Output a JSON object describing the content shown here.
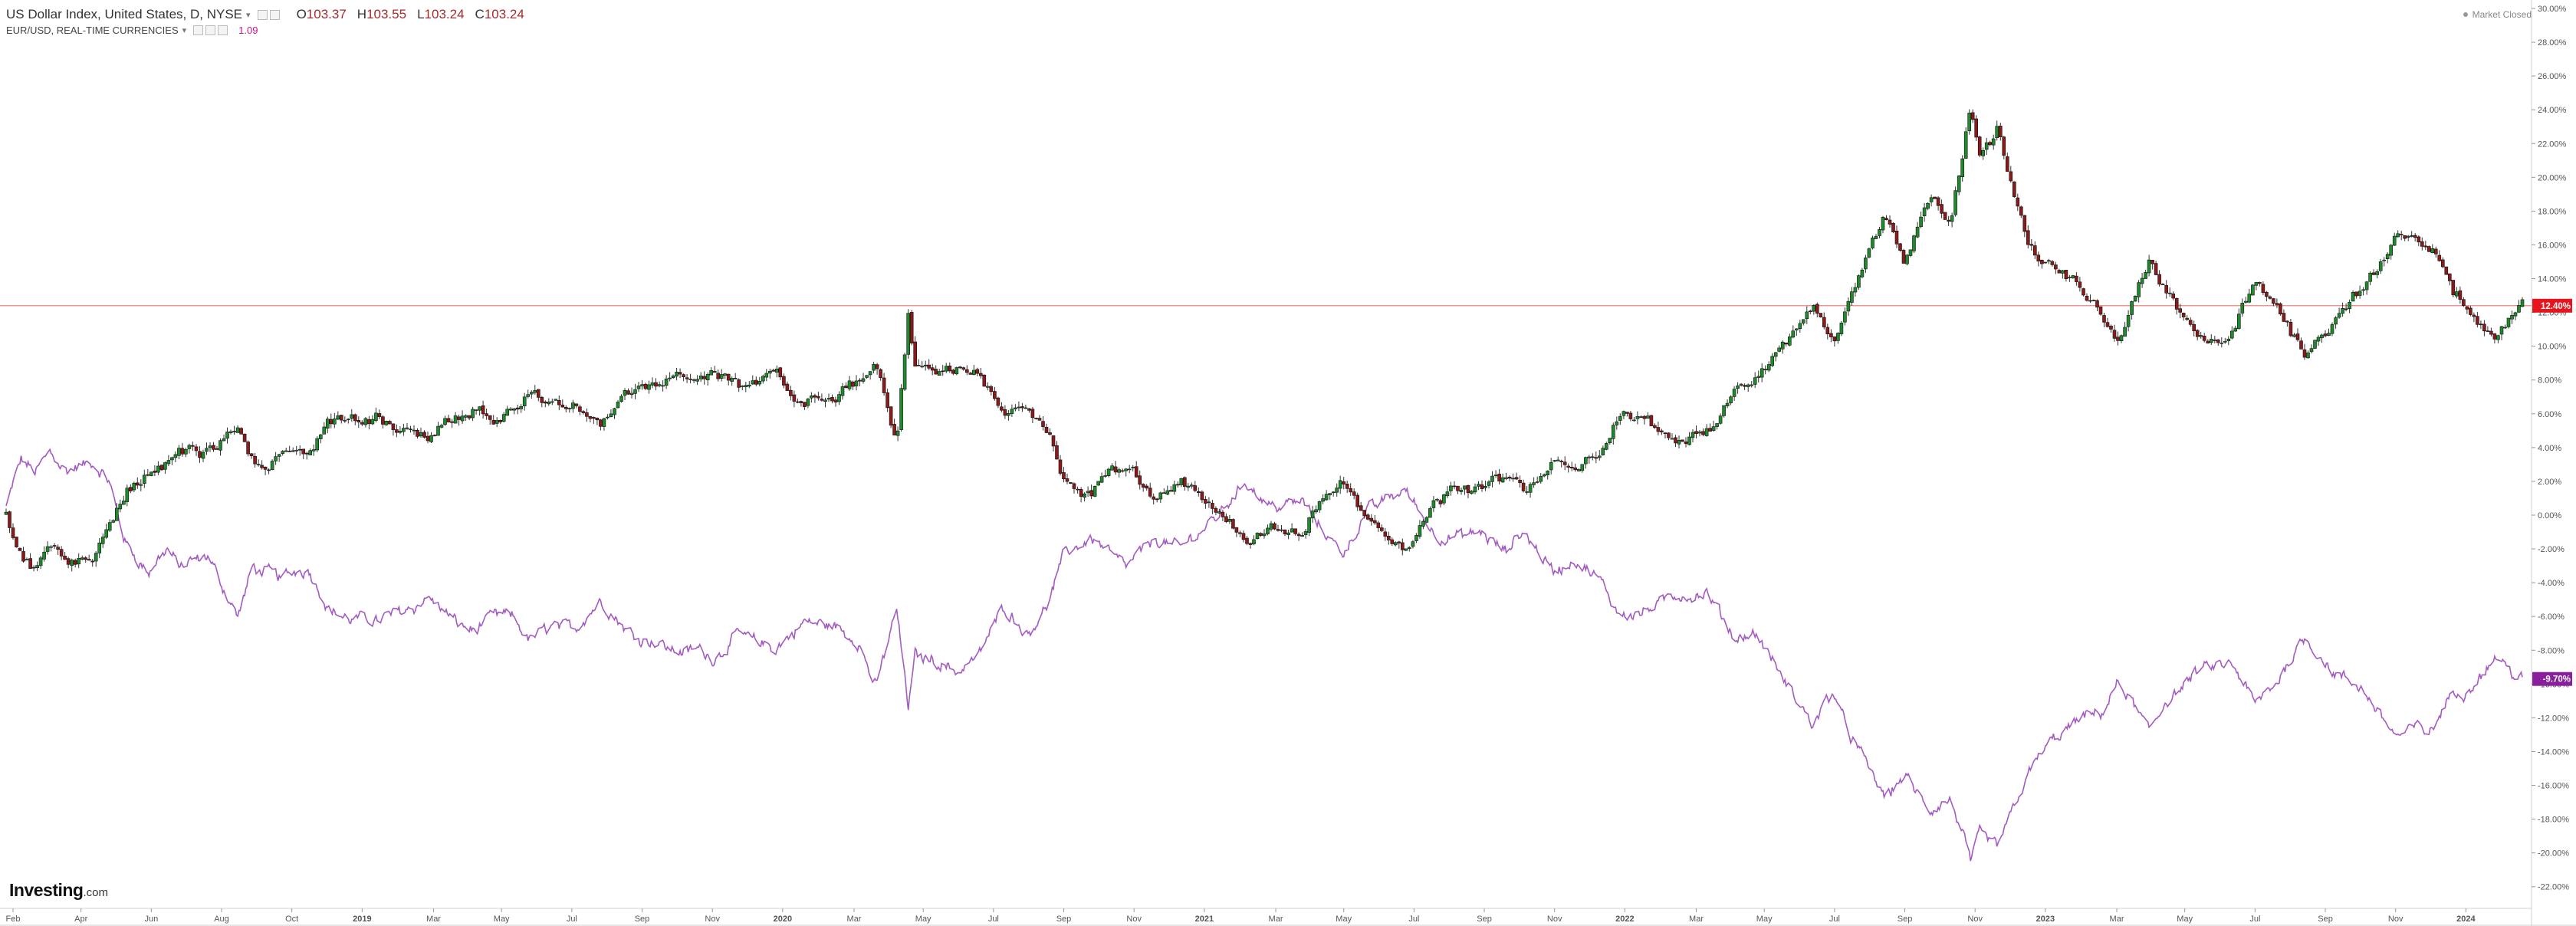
{
  "legend": {
    "title": "US Dollar Index, United States, D, NYSE",
    "ohlc": [
      {
        "key": "O",
        "value": "103.37"
      },
      {
        "key": "H",
        "value": "103.55"
      },
      {
        "key": "L",
        "value": "103.24"
      },
      {
        "key": "C",
        "value": "103.24"
      }
    ],
    "compare_title": "EUR/USD, REAL-TIME CURRENCIES",
    "compare_value": "1.09"
  },
  "status": "Market Closed",
  "branding": {
    "logo": "Investing",
    "logo_suffix": ".com"
  },
  "colors": {
    "up": "#1f8a2c",
    "down": "#8b1a1a",
    "wick": "#333333",
    "compare_line": "#a35bc0",
    "last_dxy_bg": "#e8131c",
    "last_eur_bg": "#8a1f9e",
    "last_price_line": "#f08080",
    "grid": "#e6e6e6",
    "axis_text": "#555555"
  },
  "chart_data": {
    "type": "line",
    "ylim": [
      -23,
      31
    ],
    "y_ticks": [
      "30.00%",
      "28.00%",
      "26.00%",
      "24.00%",
      "22.00%",
      "20.00%",
      "18.00%",
      "16.00%",
      "14.00%",
      "12.00%",
      "10.00%",
      "8.00%",
      "6.00%",
      "4.00%",
      "2.00%",
      "0.00%",
      "-2.00%",
      "-4.00%",
      "-6.00%",
      "-8.00%",
      "-10.00%",
      "-12.00%",
      "-14.00%",
      "-16.00%",
      "-18.00%",
      "-20.00%",
      "-22.00%"
    ],
    "x_ticks": [
      "Feb",
      "Apr",
      "Jun",
      "Aug",
      "Oct",
      "2019",
      "Mar",
      "May",
      "Jul",
      "Sep",
      "Nov",
      "2020",
      "Mar",
      "May",
      "Jul",
      "Sep",
      "Nov",
      "2021",
      "Mar",
      "May",
      "Jul",
      "Sep",
      "Nov",
      "2022",
      "Mar",
      "May",
      "Jul",
      "Sep",
      "Nov",
      "2023",
      "Mar",
      "May",
      "Jul",
      "Sep",
      "Nov",
      "2024"
    ],
    "x_start": "2018-01-26",
    "x_end": "2024-01-19",
    "series": [
      {
        "name": "US Dollar Index",
        "style": "candlestick",
        "last_label": "12.40%",
        "points": [
          [
            "2018-01-26",
            0.0
          ],
          [
            "2018-02-08",
            -2.5
          ],
          [
            "2018-02-20",
            -3.2
          ],
          [
            "2018-03-05",
            -1.5
          ],
          [
            "2018-03-20",
            -2.6
          ],
          [
            "2018-04-10",
            -2.8
          ],
          [
            "2018-04-25",
            -0.5
          ],
          [
            "2018-05-10",
            1.5
          ],
          [
            "2018-06-01",
            2.8
          ],
          [
            "2018-06-25",
            3.6
          ],
          [
            "2018-07-20",
            3.3
          ],
          [
            "2018-08-15",
            5.3
          ],
          [
            "2018-08-28",
            3.0
          ],
          [
            "2018-09-20",
            3.1
          ],
          [
            "2018-10-15",
            4.0
          ],
          [
            "2018-11-01",
            5.3
          ],
          [
            "2018-11-20",
            5.8
          ],
          [
            "2018-12-15",
            6.1
          ],
          [
            "2019-01-10",
            4.8
          ],
          [
            "2019-01-30",
            4.9
          ],
          [
            "2019-02-20",
            6.0
          ],
          [
            "2019-03-10",
            6.4
          ],
          [
            "2019-03-25",
            5.4
          ],
          [
            "2019-04-10",
            6.3
          ],
          [
            "2019-04-25",
            7.4
          ],
          [
            "2019-05-15",
            6.8
          ],
          [
            "2019-06-05",
            6.9
          ],
          [
            "2019-06-25",
            5.3
          ],
          [
            "2019-07-20",
            7.2
          ],
          [
            "2019-08-15",
            7.6
          ],
          [
            "2019-09-01",
            7.9
          ],
          [
            "2019-09-20",
            8.3
          ],
          [
            "2019-10-01",
            8.6
          ],
          [
            "2019-10-25",
            7.3
          ],
          [
            "2019-11-25",
            8.3
          ],
          [
            "2019-12-20",
            6.8
          ],
          [
            "2020-01-15",
            7.0
          ],
          [
            "2020-02-05",
            8.0
          ],
          [
            "2020-02-20",
            8.9
          ],
          [
            "2020-03-09",
            3.7
          ],
          [
            "2020-03-19",
            11.8
          ],
          [
            "2020-03-25",
            8.8
          ],
          [
            "2020-04-10",
            8.4
          ],
          [
            "2020-05-01",
            9.0
          ],
          [
            "2020-05-20",
            8.3
          ],
          [
            "2020-06-10",
            5.8
          ],
          [
            "2020-07-01",
            6.5
          ],
          [
            "2020-07-20",
            4.8
          ],
          [
            "2020-08-01",
            2.0
          ],
          [
            "2020-08-25",
            1.3
          ],
          [
            "2020-09-10",
            2.4
          ],
          [
            "2020-09-25",
            3.0
          ],
          [
            "2020-10-20",
            1.3
          ],
          [
            "2020-11-10",
            2.0
          ],
          [
            "2020-12-01",
            0.9
          ],
          [
            "2020-12-20",
            -0.3
          ],
          [
            "2021-01-06",
            -1.5
          ],
          [
            "2021-01-25",
            -0.8
          ],
          [
            "2021-02-25",
            -0.6
          ],
          [
            "2021-03-10",
            0.8
          ],
          [
            "2021-03-31",
            1.8
          ],
          [
            "2021-04-20",
            -0.5
          ],
          [
            "2021-05-10",
            -1.5
          ],
          [
            "2021-05-25",
            -1.8
          ],
          [
            "2021-06-20",
            0.8
          ],
          [
            "2021-07-10",
            1.4
          ],
          [
            "2021-07-30",
            1.4
          ],
          [
            "2021-08-20",
            2.2
          ],
          [
            "2021-09-05",
            1.1
          ],
          [
            "2021-09-30",
            3.0
          ],
          [
            "2021-10-20",
            2.8
          ],
          [
            "2021-11-10",
            4.0
          ],
          [
            "2021-11-24",
            5.8
          ],
          [
            "2021-12-20",
            5.6
          ],
          [
            "2022-01-14",
            4.2
          ],
          [
            "2022-02-10",
            4.8
          ],
          [
            "2022-03-07",
            7.0
          ],
          [
            "2022-03-25",
            7.8
          ],
          [
            "2022-04-15",
            9.6
          ],
          [
            "2022-05-12",
            12.6
          ],
          [
            "2022-05-31",
            10.4
          ],
          [
            "2022-06-14",
            13.0
          ],
          [
            "2022-07-14",
            18.1
          ],
          [
            "2022-08-01",
            15.4
          ],
          [
            "2022-08-23",
            19.0
          ],
          [
            "2022-09-10",
            17.8
          ],
          [
            "2022-09-27",
            24.2
          ],
          [
            "2022-10-05",
            21.2
          ],
          [
            "2022-10-20",
            23.0
          ],
          [
            "2022-11-15",
            16.4
          ],
          [
            "2022-12-05",
            14.8
          ],
          [
            "2022-12-30",
            13.8
          ],
          [
            "2023-01-20",
            11.5
          ],
          [
            "2023-02-02",
            10.0
          ],
          [
            "2023-03-01",
            15.0
          ],
          [
            "2023-03-15",
            13.0
          ],
          [
            "2023-04-14",
            10.7
          ],
          [
            "2023-05-10",
            11.0
          ],
          [
            "2023-05-31",
            14.0
          ],
          [
            "2023-06-20",
            12.4
          ],
          [
            "2023-07-14",
            9.2
          ],
          [
            "2023-08-10",
            11.6
          ],
          [
            "2023-09-01",
            13.3
          ],
          [
            "2023-10-03",
            16.3
          ],
          [
            "2023-10-20",
            16.0
          ],
          [
            "2023-11-01",
            16.0
          ],
          [
            "2023-11-20",
            13.0
          ],
          [
            "2023-12-01",
            12.6
          ],
          [
            "2023-12-27",
            10.3
          ],
          [
            "2024-01-10",
            11.8
          ],
          [
            "2024-01-19",
            12.4
          ]
        ]
      },
      {
        "name": "EUR/USD",
        "style": "line",
        "last_label": "-9.70%",
        "points": [
          [
            "2018-01-26",
            0.5
          ],
          [
            "2018-02-08",
            3.2
          ],
          [
            "2018-02-20",
            2.5
          ],
          [
            "2018-03-05",
            3.8
          ],
          [
            "2018-03-20",
            2.8
          ],
          [
            "2018-04-10",
            3.0
          ],
          [
            "2018-04-25",
            1.8
          ],
          [
            "2018-05-10",
            -1.8
          ],
          [
            "2018-05-30",
            -3.4
          ],
          [
            "2018-06-15",
            -2.0
          ],
          [
            "2018-06-25",
            -3.0
          ],
          [
            "2018-07-20",
            -2.7
          ],
          [
            "2018-08-15",
            -6.0
          ],
          [
            "2018-08-28",
            -3.2
          ],
          [
            "2018-09-20",
            -3.7
          ],
          [
            "2018-10-15",
            -3.0
          ],
          [
            "2018-11-01",
            -5.3
          ],
          [
            "2018-11-20",
            -6.2
          ],
          [
            "2018-12-15",
            -6.2
          ],
          [
            "2019-01-10",
            -5.3
          ],
          [
            "2019-01-30",
            -4.8
          ],
          [
            "2019-02-20",
            -6.4
          ],
          [
            "2019-03-10",
            -6.8
          ],
          [
            "2019-03-25",
            -6.0
          ],
          [
            "2019-04-10",
            -6.1
          ],
          [
            "2019-04-25",
            -7.5
          ],
          [
            "2019-05-15",
            -6.5
          ],
          [
            "2019-06-05",
            -6.6
          ],
          [
            "2019-06-25",
            -5.0
          ],
          [
            "2019-07-20",
            -6.9
          ],
          [
            "2019-08-15",
            -7.4
          ],
          [
            "2019-09-01",
            -8.0
          ],
          [
            "2019-09-20",
            -7.9
          ],
          [
            "2019-10-01",
            -8.5
          ],
          [
            "2019-10-25",
            -7.0
          ],
          [
            "2019-11-25",
            -8.0
          ],
          [
            "2019-12-20",
            -6.4
          ],
          [
            "2020-01-15",
            -6.6
          ],
          [
            "2020-02-05",
            -7.6
          ],
          [
            "2020-02-20",
            -10.2
          ],
          [
            "2020-03-09",
            -5.5
          ],
          [
            "2020-03-19",
            -11.3
          ],
          [
            "2020-03-25",
            -8.3
          ],
          [
            "2020-04-10",
            -8.5
          ],
          [
            "2020-05-01",
            -9.2
          ],
          [
            "2020-05-20",
            -8.1
          ],
          [
            "2020-06-10",
            -5.3
          ],
          [
            "2020-07-01",
            -6.9
          ],
          [
            "2020-07-20",
            -4.9
          ],
          [
            "2020-08-01",
            -2.4
          ],
          [
            "2020-08-25",
            -1.3
          ],
          [
            "2020-09-10",
            -2.0
          ],
          [
            "2020-09-25",
            -2.9
          ],
          [
            "2020-10-20",
            -1.4
          ],
          [
            "2020-11-10",
            -2.0
          ],
          [
            "2020-12-01",
            -0.8
          ],
          [
            "2020-12-20",
            0.7
          ],
          [
            "2021-01-06",
            2.1
          ],
          [
            "2021-01-25",
            0.7
          ],
          [
            "2021-02-25",
            0.8
          ],
          [
            "2021-03-10",
            -0.6
          ],
          [
            "2021-03-31",
            -2.2
          ],
          [
            "2021-04-20",
            0.1
          ],
          [
            "2021-05-10",
            1.1
          ],
          [
            "2021-05-25",
            1.5
          ],
          [
            "2021-06-20",
            -1.2
          ],
          [
            "2021-07-10",
            -1.3
          ],
          [
            "2021-07-30",
            -1.2
          ],
          [
            "2021-08-20",
            -2.3
          ],
          [
            "2021-09-05",
            -1.1
          ],
          [
            "2021-09-30",
            -3.3
          ],
          [
            "2021-10-20",
            -2.8
          ],
          [
            "2021-11-10",
            -4.1
          ],
          [
            "2021-11-24",
            -5.8
          ],
          [
            "2021-12-20",
            -5.5
          ],
          [
            "2022-01-14",
            -4.8
          ],
          [
            "2022-02-10",
            -4.9
          ],
          [
            "2022-03-07",
            -7.5
          ],
          [
            "2022-03-25",
            -7.0
          ],
          [
            "2022-04-15",
            -9.6
          ],
          [
            "2022-05-12",
            -12.5
          ],
          [
            "2022-05-31",
            -10.3
          ],
          [
            "2022-06-14",
            -12.8
          ],
          [
            "2022-07-14",
            -16.7
          ],
          [
            "2022-08-01",
            -15.4
          ],
          [
            "2022-08-23",
            -17.7
          ],
          [
            "2022-09-10",
            -17.1
          ],
          [
            "2022-09-27",
            -20.6
          ],
          [
            "2022-10-05",
            -19.0
          ],
          [
            "2022-10-20",
            -19.7
          ],
          [
            "2022-11-15",
            -15.2
          ],
          [
            "2022-12-05",
            -13.4
          ],
          [
            "2022-12-30",
            -12.2
          ],
          [
            "2023-01-20",
            -11.8
          ],
          [
            "2023-02-02",
            -10.0
          ],
          [
            "2023-03-01",
            -12.8
          ],
          [
            "2023-03-15",
            -11.0
          ],
          [
            "2023-04-14",
            -9.3
          ],
          [
            "2023-05-10",
            -8.8
          ],
          [
            "2023-05-31",
            -11.3
          ],
          [
            "2023-06-20",
            -10.1
          ],
          [
            "2023-07-14",
            -7.0
          ],
          [
            "2023-08-10",
            -9.4
          ],
          [
            "2023-09-01",
            -10.5
          ],
          [
            "2023-10-03",
            -13.0
          ],
          [
            "2023-10-20",
            -12.6
          ],
          [
            "2023-11-01",
            -12.7
          ],
          [
            "2023-11-20",
            -10.5
          ],
          [
            "2023-12-01",
            -10.8
          ],
          [
            "2023-12-27",
            -8.2
          ],
          [
            "2024-01-10",
            -9.3
          ],
          [
            "2024-01-19",
            -9.7
          ]
        ]
      }
    ],
    "last_price_line": 12.4,
    "grid": false,
    "legend_position": "top-left"
  }
}
